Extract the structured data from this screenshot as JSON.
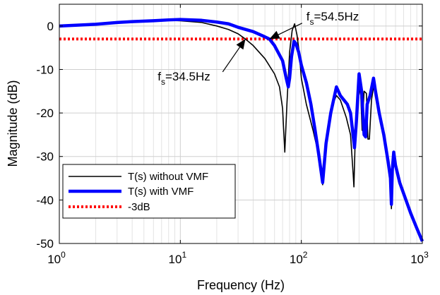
{
  "chart_data": {
    "type": "line",
    "title": "",
    "xlabel": "Frequency (Hz)",
    "ylabel": "Magnitude (dB)",
    "xscale": "log",
    "xlim": [
      1,
      1000
    ],
    "ylim": [
      -50,
      5
    ],
    "x_ticks": [
      {
        "value": 1,
        "base": "10",
        "exp": "0"
      },
      {
        "value": 10,
        "base": "10",
        "exp": "1"
      },
      {
        "value": 100,
        "base": "10",
        "exp": "2"
      },
      {
        "value": 1000,
        "base": "10",
        "exp": "3"
      }
    ],
    "y_ticks": [
      0,
      -10,
      -20,
      -30,
      -40,
      -50
    ],
    "grid": true,
    "legend_position": "bottom-left",
    "series": [
      {
        "name": "T(s) without VMF",
        "color": "#000000",
        "style": "solid-thin",
        "points": [
          [
            1,
            0
          ],
          [
            2,
            0.4
          ],
          [
            3,
            0.9
          ],
          [
            4,
            1.2
          ],
          [
            6,
            1.3
          ],
          [
            8,
            1.3
          ],
          [
            10,
            1.2
          ],
          [
            15,
            0.8
          ],
          [
            20,
            0
          ],
          [
            25,
            -0.8
          ],
          [
            30,
            -1.8
          ],
          [
            34.5,
            -3
          ],
          [
            40,
            -4.5
          ],
          [
            50,
            -7.5
          ],
          [
            60,
            -11
          ],
          [
            66,
            -14
          ],
          [
            70,
            -19
          ],
          [
            73,
            -29
          ],
          [
            76,
            -18
          ],
          [
            80,
            -6
          ],
          [
            84,
            -1
          ],
          [
            88,
            0.5
          ],
          [
            92,
            -2
          ],
          [
            96,
            -6
          ],
          [
            100,
            -12
          ],
          [
            110,
            -18
          ],
          [
            125,
            -24
          ],
          [
            140,
            -30
          ],
          [
            150,
            -36.5
          ],
          [
            160,
            -27
          ],
          [
            175,
            -19
          ],
          [
            195,
            -16
          ],
          [
            210,
            -17
          ],
          [
            235,
            -21
          ],
          [
            255,
            -25
          ],
          [
            268,
            -34
          ],
          [
            272,
            -37
          ],
          [
            280,
            -24
          ],
          [
            295,
            -13
          ],
          [
            310,
            -16
          ],
          [
            318,
            -24
          ],
          [
            330,
            -15
          ],
          [
            345,
            -15.5
          ],
          [
            355,
            -26
          ],
          [
            365,
            -26
          ],
          [
            380,
            -17
          ],
          [
            395,
            -14
          ],
          [
            410,
            -15
          ],
          [
            440,
            -20
          ],
          [
            480,
            -25
          ],
          [
            520,
            -30
          ],
          [
            545,
            -34
          ],
          [
            555,
            -42
          ],
          [
            565,
            -35
          ],
          [
            580,
            -29
          ],
          [
            600,
            -32
          ],
          [
            650,
            -36
          ],
          [
            700,
            -38.5
          ],
          [
            800,
            -43
          ],
          [
            900,
            -46.5
          ],
          [
            1000,
            -49.5
          ]
        ]
      },
      {
        "name": "T(s) with VMF",
        "color": "#0000ff",
        "style": "solid-thick",
        "points": [
          [
            1,
            0
          ],
          [
            2,
            0.4
          ],
          [
            3,
            0.8
          ],
          [
            4,
            1
          ],
          [
            6,
            1.2
          ],
          [
            8,
            1.4
          ],
          [
            10,
            1.5
          ],
          [
            15,
            1.3
          ],
          [
            20,
            0.9
          ],
          [
            25,
            0.5
          ],
          [
            30,
            -0.3
          ],
          [
            40,
            -1.3
          ],
          [
            50,
            -2.5
          ],
          [
            54.5,
            -3
          ],
          [
            60,
            -4.5
          ],
          [
            70,
            -8
          ],
          [
            75,
            -12
          ],
          [
            78,
            -14
          ],
          [
            80,
            -12
          ],
          [
            83,
            -7
          ],
          [
            87,
            -3.5
          ],
          [
            90,
            -4
          ],
          [
            95,
            -6
          ],
          [
            100,
            -9
          ],
          [
            110,
            -13
          ],
          [
            120,
            -18
          ],
          [
            130,
            -24
          ],
          [
            140,
            -30
          ],
          [
            150,
            -36
          ],
          [
            160,
            -27
          ],
          [
            175,
            -20
          ],
          [
            195,
            -14
          ],
          [
            210,
            -16
          ],
          [
            240,
            -18
          ],
          [
            255,
            -20
          ],
          [
            265,
            -24
          ],
          [
            275,
            -28
          ],
          [
            285,
            -22
          ],
          [
            300,
            -11
          ],
          [
            315,
            -15
          ],
          [
            330,
            -25
          ],
          [
            340,
            -25.5
          ],
          [
            350,
            -18
          ],
          [
            370,
            -16
          ],
          [
            395,
            -12
          ],
          [
            410,
            -15
          ],
          [
            440,
            -20
          ],
          [
            480,
            -25
          ],
          [
            520,
            -31
          ],
          [
            545,
            -35
          ],
          [
            555,
            -41
          ],
          [
            565,
            -33
          ],
          [
            580,
            -29
          ],
          [
            600,
            -32
          ],
          [
            650,
            -36
          ],
          [
            700,
            -38.5
          ],
          [
            800,
            -43
          ],
          [
            900,
            -46.5
          ],
          [
            1000,
            -49.5
          ]
        ]
      },
      {
        "name": "-3dB",
        "color": "#ff0000",
        "style": "dotted",
        "points": [
          [
            1,
            -3
          ],
          [
            1000,
            -3
          ]
        ]
      }
    ],
    "annotations": [
      {
        "base": "f",
        "sub": "s",
        "rest": "=54.5Hz",
        "x": 54.5,
        "y": -3,
        "text_at": [
          110,
          1.3
        ]
      },
      {
        "base": "f",
        "sub": "s",
        "rest": "=34.5Hz",
        "x": 34.5,
        "y": -3,
        "text_at": [
          6.5,
          -12.5
        ]
      }
    ]
  }
}
